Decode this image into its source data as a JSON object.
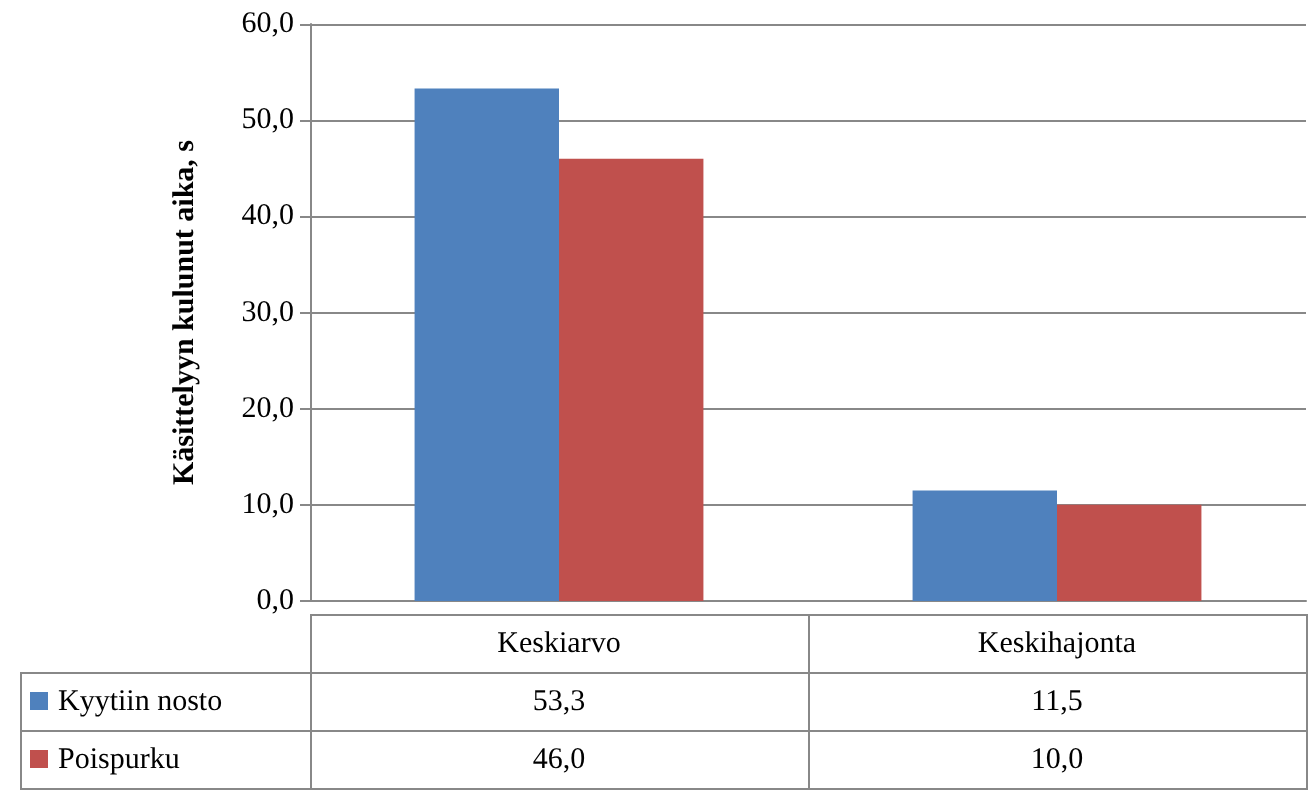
{
  "chart_data": {
    "type": "bar",
    "ylabel": "Käsittelyyn kulunut aika, s",
    "categories": [
      "Keskiarvo",
      "Keskihajonta"
    ],
    "series": [
      {
        "name": "Kyytiin nosto",
        "color": "#4f81bd",
        "values": [
          53.3,
          11.5
        ],
        "value_labels": [
          "53,3",
          "11,5"
        ]
      },
      {
        "name": "Poispurku",
        "color": "#c0504d",
        "values": [
          46.0,
          10.0
        ],
        "value_labels": [
          "46,0",
          "10,0"
        ]
      }
    ],
    "ylim": [
      0,
      60
    ],
    "yticks": [
      {
        "value": 0,
        "label": "0,0"
      },
      {
        "value": 10,
        "label": "10,0"
      },
      {
        "value": 20,
        "label": "20,0"
      },
      {
        "value": 30,
        "label": "30,0"
      },
      {
        "value": 40,
        "label": "40,0"
      },
      {
        "value": 50,
        "label": "50,0"
      },
      {
        "value": 60,
        "label": "60,0"
      }
    ],
    "grid": "y",
    "legend": "bottom"
  }
}
